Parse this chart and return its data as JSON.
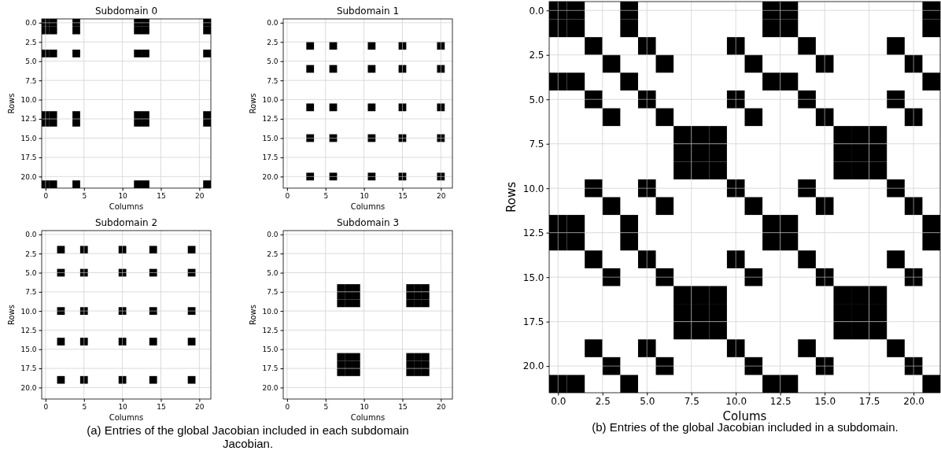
{
  "chart_data": [
    {
      "type": "scatter",
      "title": "Subdomain 0",
      "xlabel": "Columns",
      "ylabel": "Rows",
      "xlim": [
        -0.5,
        21.5
      ],
      "ylim": [
        21.5,
        -0.5
      ],
      "xticks": [
        0,
        5,
        10,
        15,
        20
      ],
      "yticks": [
        {
          "value": 0,
          "label": "0.0"
        },
        {
          "value": 2.5,
          "label": "2.5"
        },
        {
          "value": 5,
          "label": "5.0"
        },
        {
          "value": 7.5,
          "label": "7.5"
        },
        {
          "value": 10,
          "label": "10.0"
        },
        {
          "value": 12.5,
          "label": "12.5"
        },
        {
          "value": 15,
          "label": "15.0"
        },
        {
          "value": 17.5,
          "label": "17.5"
        },
        {
          "value": 20,
          "label": "20.0"
        }
      ],
      "grid": true,
      "marker": "square",
      "series": [
        {
          "color": "#000000",
          "x": [
            0,
            1,
            4,
            12,
            13,
            21,
            0,
            1,
            4,
            12,
            13,
            21,
            0,
            1,
            4,
            12,
            13,
            21,
            0,
            1,
            4,
            12,
            13,
            21,
            0,
            1,
            4,
            12,
            13,
            21,
            0,
            1,
            4,
            12,
            13,
            21
          ],
          "values": [
            0,
            0,
            0,
            0,
            0,
            0,
            1,
            1,
            1,
            1,
            1,
            1,
            4,
            4,
            4,
            4,
            4,
            4,
            12,
            12,
            12,
            12,
            12,
            12,
            13,
            13,
            13,
            13,
            13,
            13,
            21,
            21,
            21,
            21,
            21,
            21
          ]
        }
      ]
    },
    {
      "type": "scatter",
      "title": "Subdomain 1",
      "xlabel": "Columns",
      "ylabel": "Rows",
      "xlim": [
        -0.5,
        21.5
      ],
      "ylim": [
        21.5,
        -0.5
      ],
      "xticks": [
        0,
        5,
        10,
        15,
        20
      ],
      "yticks": [
        {
          "value": 0,
          "label": "0.0"
        },
        {
          "value": 2.5,
          "label": "2.5"
        },
        {
          "value": 5,
          "label": "5.0"
        },
        {
          "value": 7.5,
          "label": "7.5"
        },
        {
          "value": 10,
          "label": "10.0"
        },
        {
          "value": 12.5,
          "label": "12.5"
        },
        {
          "value": 15,
          "label": "15.0"
        },
        {
          "value": 17.5,
          "label": "17.5"
        },
        {
          "value": 20,
          "label": "20.0"
        }
      ],
      "grid": true,
      "marker": "square",
      "series": [
        {
          "color": "#000000",
          "x": [
            3,
            6,
            11,
            15,
            20,
            3,
            6,
            11,
            15,
            20,
            3,
            6,
            11,
            15,
            20,
            3,
            6,
            11,
            15,
            20,
            3,
            6,
            11,
            15,
            20
          ],
          "values": [
            3,
            3,
            3,
            3,
            3,
            6,
            6,
            6,
            6,
            6,
            11,
            11,
            11,
            11,
            11,
            15,
            15,
            15,
            15,
            15,
            20,
            20,
            20,
            20,
            20
          ]
        }
      ]
    },
    {
      "type": "scatter",
      "title": "Subdomain 2",
      "xlabel": "Columns",
      "ylabel": "Rows",
      "xlim": [
        -0.5,
        21.5
      ],
      "ylim": [
        21.5,
        -0.5
      ],
      "xticks": [
        0,
        5,
        10,
        15,
        20
      ],
      "yticks": [
        {
          "value": 0,
          "label": "0.0"
        },
        {
          "value": 2.5,
          "label": "2.5"
        },
        {
          "value": 5,
          "label": "5.0"
        },
        {
          "value": 7.5,
          "label": "7.5"
        },
        {
          "value": 10,
          "label": "10.0"
        },
        {
          "value": 12.5,
          "label": "12.5"
        },
        {
          "value": 15,
          "label": "15.0"
        },
        {
          "value": 17.5,
          "label": "17.5"
        },
        {
          "value": 20,
          "label": "20.0"
        }
      ],
      "grid": true,
      "marker": "square",
      "annotations": [
        "(a) Entries of the global Jacobian included in each subdomain Jacobian."
      ],
      "series": [
        {
          "color": "#000000",
          "x": [
            2,
            5,
            10,
            14,
            19,
            2,
            5,
            10,
            14,
            19,
            2,
            5,
            10,
            14,
            19,
            2,
            5,
            10,
            14,
            19,
            2,
            5,
            10,
            14,
            19
          ],
          "values": [
            2,
            2,
            2,
            2,
            2,
            5,
            5,
            5,
            5,
            5,
            10,
            10,
            10,
            10,
            10,
            14,
            14,
            14,
            14,
            14,
            19,
            19,
            19,
            19,
            19
          ]
        }
      ]
    },
    {
      "type": "scatter",
      "title": "Subdomain 3",
      "xlabel": "Columns",
      "ylabel": "Rows",
      "xlim": [
        -0.5,
        21.5
      ],
      "ylim": [
        21.5,
        -0.5
      ],
      "xticks": [
        0,
        5,
        10,
        15,
        20
      ],
      "yticks": [
        {
          "value": 0,
          "label": "0.0"
        },
        {
          "value": 2.5,
          "label": "2.5"
        },
        {
          "value": 5,
          "label": "5.0"
        },
        {
          "value": 7.5,
          "label": "7.5"
        },
        {
          "value": 10,
          "label": "10.0"
        },
        {
          "value": 12.5,
          "label": "12.5"
        },
        {
          "value": 15,
          "label": "15.0"
        },
        {
          "value": 17.5,
          "label": "17.5"
        },
        {
          "value": 20,
          "label": "20.0"
        }
      ],
      "grid": true,
      "marker": "square",
      "series": [
        {
          "color": "#000000",
          "x": [
            7,
            8,
            9,
            16,
            17,
            18,
            7,
            8,
            9,
            16,
            17,
            18,
            7,
            8,
            9,
            16,
            17,
            18,
            7,
            8,
            9,
            16,
            17,
            18,
            7,
            8,
            9,
            16,
            17,
            18,
            7,
            8,
            9,
            16,
            17,
            18
          ],
          "values": [
            7,
            7,
            7,
            7,
            7,
            7,
            8,
            8,
            8,
            8,
            8,
            8,
            9,
            9,
            9,
            9,
            9,
            9,
            16,
            16,
            16,
            16,
            16,
            16,
            17,
            17,
            17,
            17,
            17,
            17,
            18,
            18,
            18,
            18,
            18,
            18
          ]
        }
      ]
    },
    {
      "type": "scatter",
      "xlabel": "Colums",
      "ylabel": "Rows",
      "xlim": [
        -0.5,
        21.5
      ],
      "ylim": [
        21.5,
        -0.5
      ],
      "xticks": [
        {
          "value": 0,
          "label": "0.0"
        },
        {
          "value": 2.5,
          "label": "2.5"
        },
        {
          "value": 5,
          "label": "5.0"
        },
        {
          "value": 7.5,
          "label": "7.5"
        },
        {
          "value": 10,
          "label": "10.0"
        },
        {
          "value": 12.5,
          "label": "12.5"
        },
        {
          "value": 15,
          "label": "15.0"
        },
        {
          "value": 17.5,
          "label": "17.5"
        },
        {
          "value": 20,
          "label": "20.0"
        }
      ],
      "yticks": [
        {
          "value": 0,
          "label": "0.0"
        },
        {
          "value": 2.5,
          "label": "2.5"
        },
        {
          "value": 5,
          "label": "5.0"
        },
        {
          "value": 7.5,
          "label": "7.5"
        },
        {
          "value": 10,
          "label": "10.0"
        },
        {
          "value": 12.5,
          "label": "12.5"
        },
        {
          "value": 15,
          "label": "15.0"
        },
        {
          "value": 17.5,
          "label": "17.5"
        },
        {
          "value": 20,
          "label": "20.0"
        }
      ],
      "grid": true,
      "marker": "square",
      "annotations": [
        "(b) Entries of the global Jacobian included in a subdomain."
      ],
      "series": [
        {
          "color": "#000000",
          "x": [
            0,
            1,
            4,
            12,
            13,
            21,
            0,
            1,
            4,
            12,
            13,
            21,
            2,
            5,
            10,
            14,
            19,
            3,
            6,
            11,
            15,
            20,
            0,
            1,
            4,
            12,
            13,
            21,
            2,
            5,
            10,
            14,
            19,
            3,
            6,
            11,
            15,
            20,
            7,
            8,
            9,
            16,
            17,
            18,
            7,
            8,
            9,
            16,
            17,
            18,
            7,
            8,
            9,
            16,
            17,
            18,
            2,
            5,
            10,
            14,
            19,
            3,
            6,
            11,
            15,
            20,
            0,
            1,
            4,
            12,
            13,
            21,
            0,
            1,
            4,
            12,
            13,
            21,
            2,
            5,
            10,
            14,
            19,
            3,
            6,
            11,
            15,
            20,
            7,
            8,
            9,
            16,
            17,
            18,
            7,
            8,
            9,
            16,
            17,
            18,
            7,
            8,
            9,
            16,
            17,
            18,
            2,
            5,
            10,
            14,
            19,
            3,
            6,
            11,
            15,
            20,
            0,
            1,
            4,
            12,
            13,
            21
          ],
          "values": [
            0,
            0,
            0,
            0,
            0,
            0,
            1,
            1,
            1,
            1,
            1,
            1,
            2,
            2,
            2,
            2,
            2,
            3,
            3,
            3,
            3,
            3,
            4,
            4,
            4,
            4,
            4,
            4,
            5,
            5,
            5,
            5,
            5,
            6,
            6,
            6,
            6,
            6,
            7,
            7,
            7,
            7,
            7,
            7,
            8,
            8,
            8,
            8,
            8,
            8,
            9,
            9,
            9,
            9,
            9,
            9,
            10,
            10,
            10,
            10,
            10,
            11,
            11,
            11,
            11,
            11,
            12,
            12,
            12,
            12,
            12,
            12,
            13,
            13,
            13,
            13,
            13,
            13,
            14,
            14,
            14,
            14,
            14,
            15,
            15,
            15,
            15,
            15,
            16,
            16,
            16,
            16,
            16,
            16,
            17,
            17,
            17,
            17,
            17,
            17,
            18,
            18,
            18,
            18,
            18,
            18,
            19,
            19,
            19,
            19,
            19,
            20,
            20,
            20,
            20,
            20,
            21,
            21,
            21,
            21,
            21,
            21
          ]
        }
      ]
    }
  ]
}
